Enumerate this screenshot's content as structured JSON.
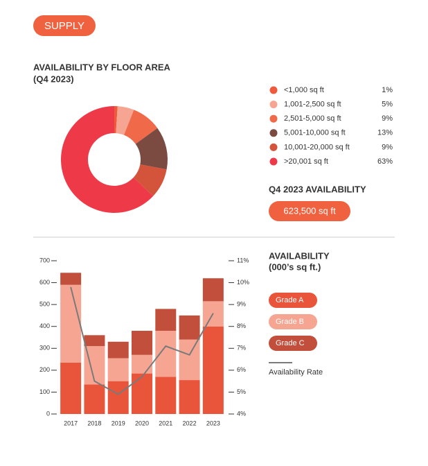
{
  "header": {
    "badge": "SUPPLY"
  },
  "chart_data": [
    {
      "type": "pie",
      "donut": true,
      "title": "AVAILABILITY BY FLOOR AREA",
      "subtitle": "(Q4 2023)",
      "categories": [
        "<1,000 sq ft",
        "1,001-2,500 sq ft",
        "2,501-5,000 sq ft",
        "5,001-10,000 sq ft",
        "10,001-20,000 sq ft",
        ">20,001 sq ft"
      ],
      "values": [
        1,
        5,
        9,
        13,
        9,
        63
      ],
      "value_labels": [
        "1%",
        "5%",
        "9%",
        "13%",
        "9%",
        "63%"
      ],
      "colors": [
        "#ef5a3c",
        "#f5a591",
        "#f06a4a",
        "#7b4b42",
        "#d4533b",
        "#ee3a48"
      ]
    },
    {
      "type": "bar",
      "stacked": true,
      "title": "AVAILABILITY",
      "subtitle": "(000’s sq ft.)",
      "categories": [
        "2017",
        "2018",
        "2019",
        "2020",
        "2021",
        "2022",
        "2023"
      ],
      "series": [
        {
          "name": "Grade A",
          "color": "#e8553a",
          "values": [
            235,
            135,
            150,
            185,
            170,
            155,
            400
          ]
        },
        {
          "name": "Grade B",
          "color": "#f6a592",
          "values": [
            355,
            175,
            105,
            85,
            210,
            185,
            115
          ]
        },
        {
          "name": "Grade C",
          "color": "#c24e3c",
          "values": [
            55,
            50,
            75,
            110,
            100,
            110,
            105
          ]
        },
        {
          "name": "Availability Rate",
          "type": "line",
          "axis": "y2",
          "color": "#7a7a7a",
          "values": [
            9.8,
            5.5,
            4.9,
            5.7,
            7.1,
            6.7,
            8.6
          ]
        }
      ],
      "ylim": [
        0,
        700
      ],
      "yticks": [
        0,
        100,
        200,
        300,
        400,
        500,
        600,
        700
      ],
      "y2lim": [
        4,
        11
      ],
      "y2ticks": [
        {
          "value": 4,
          "label": "4%"
        },
        {
          "value": 5,
          "label": "5%"
        },
        {
          "value": 6,
          "label": "6%"
        },
        {
          "value": 7,
          "label": "7%"
        },
        {
          "value": 8,
          "label": "8%"
        },
        {
          "value": 9,
          "label": "9%"
        },
        {
          "value": 10,
          "label": "10%"
        },
        {
          "value": 11,
          "label": "11%"
        }
      ]
    }
  ],
  "summary": {
    "title": "Q4 2023 AVAILABILITY",
    "value": "623,500 sq ft"
  }
}
